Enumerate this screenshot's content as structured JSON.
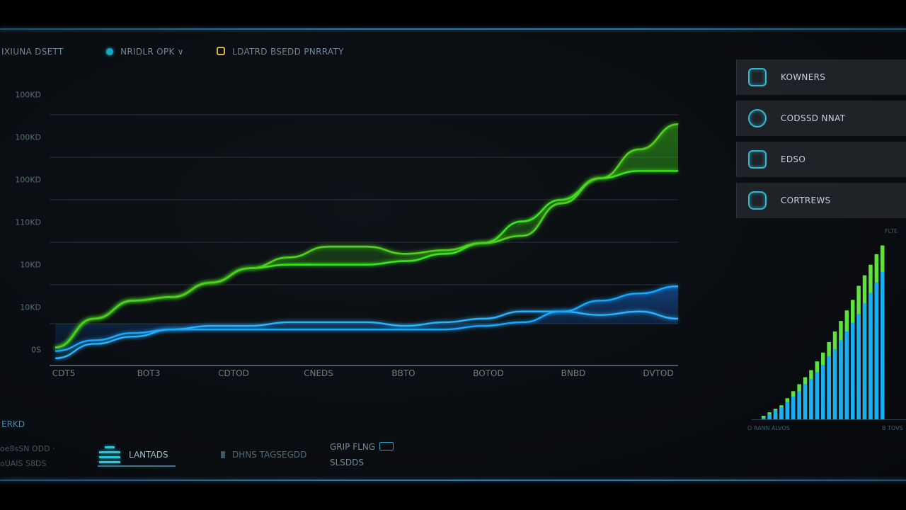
{
  "colors": {
    "accent_blue": "#17a9ff",
    "accent_green": "#37e51c",
    "accent_cyan": "#2fb9d0",
    "grid": "#2a3238"
  },
  "header": {
    "tabs": [
      {
        "label": "IXIUNA DSETT",
        "icon": "none"
      },
      {
        "label": "NRIDLR OPK ∨",
        "icon": "cyan-dot-icon"
      },
      {
        "label": "LDATRD BSEDD PNRRATY",
        "icon": "yellow-square-icon"
      }
    ]
  },
  "side_menu": {
    "items": [
      {
        "label": "KOWNERS",
        "icon": "dragon-icon"
      },
      {
        "label": "CODSSD NNAT",
        "icon": "globe-icon"
      },
      {
        "label": "EDSO",
        "icon": "grid-icon"
      },
      {
        "label": "CORTREWS",
        "icon": "camera-icon"
      }
    ]
  },
  "bottom": {
    "title": "ERKD",
    "lines": [
      "oe8sSN ODD ·",
      "oUAIS S8DS"
    ],
    "buttons": [
      {
        "label": "LANTADS",
        "icon": "stack-icon"
      },
      {
        "label": "DHNS TAGSEGDD",
        "icon": "bar-icon"
      }
    ],
    "right_text": [
      "GRIP FLNG",
      "SLSDDS"
    ]
  },
  "chart_data": {
    "type": "line",
    "title": "",
    "xlabel": "",
    "ylabel": "",
    "y_ticks": [
      "100KD",
      "100KD",
      "100KD",
      "110KD",
      "10KD",
      "10KD",
      "0S"
    ],
    "x_ticks": [
      "CDT5",
      "BOT3",
      "CDTOD",
      "CNEDS",
      "BBTO",
      "BOTOD",
      "BNBD",
      "DVTOD"
    ],
    "ylim": [
      0,
      7
    ],
    "grid": true,
    "x": [
      0,
      1,
      2,
      3,
      4,
      5,
      6,
      7,
      8,
      9,
      10,
      11,
      12,
      13,
      14,
      15,
      16
    ],
    "series": [
      {
        "color": "#39e61c",
        "values": [
          0.5,
          1.3,
          1.8,
          1.9,
          2.3,
          2.7,
          2.8,
          2.8,
          2.8,
          2.9,
          3.1,
          3.4,
          4.0,
          4.6,
          5.2,
          5.4,
          5.4
        ]
      },
      {
        "color": "#4fd11c",
        "values": [
          0.5,
          1.3,
          1.8,
          1.9,
          2.3,
          2.7,
          3.0,
          3.3,
          3.3,
          3.1,
          3.2,
          3.4,
          3.6,
          4.5,
          5.2,
          6.0,
          6.7
        ]
      },
      {
        "color": "#29b4ff",
        "values": [
          0.2,
          0.6,
          0.8,
          1.0,
          1.1,
          1.1,
          1.2,
          1.2,
          1.2,
          1.1,
          1.2,
          1.3,
          1.5,
          1.5,
          1.4,
          1.5,
          1.3
        ]
      },
      {
        "color": "#17a9ff",
        "values": [
          0.4,
          0.7,
          0.9,
          1.0,
          1.0,
          1.0,
          1.0,
          1.0,
          1.0,
          1.0,
          1.0,
          1.1,
          1.2,
          1.5,
          1.8,
          2.0,
          2.2
        ]
      }
    ]
  },
  "mini_chart": {
    "type": "bar",
    "green_values": [
      0.02,
      0.04,
      0.06,
      0.08,
      0.12,
      0.16,
      0.2,
      0.24,
      0.28,
      0.33,
      0.38,
      0.44,
      0.5,
      0.56,
      0.62,
      0.68,
      0.76,
      0.82,
      0.88,
      0.94,
      0.99
    ],
    "blue_values": [
      0.01,
      0.03,
      0.05,
      0.07,
      0.1,
      0.13,
      0.16,
      0.2,
      0.23,
      0.27,
      0.31,
      0.36,
      0.4,
      0.45,
      0.5,
      0.55,
      0.6,
      0.66,
      0.72,
      0.78,
      0.84
    ],
    "label_left": "O RANN ALVOS",
    "label_right": "B TOVS",
    "label_top": "FLTE"
  }
}
